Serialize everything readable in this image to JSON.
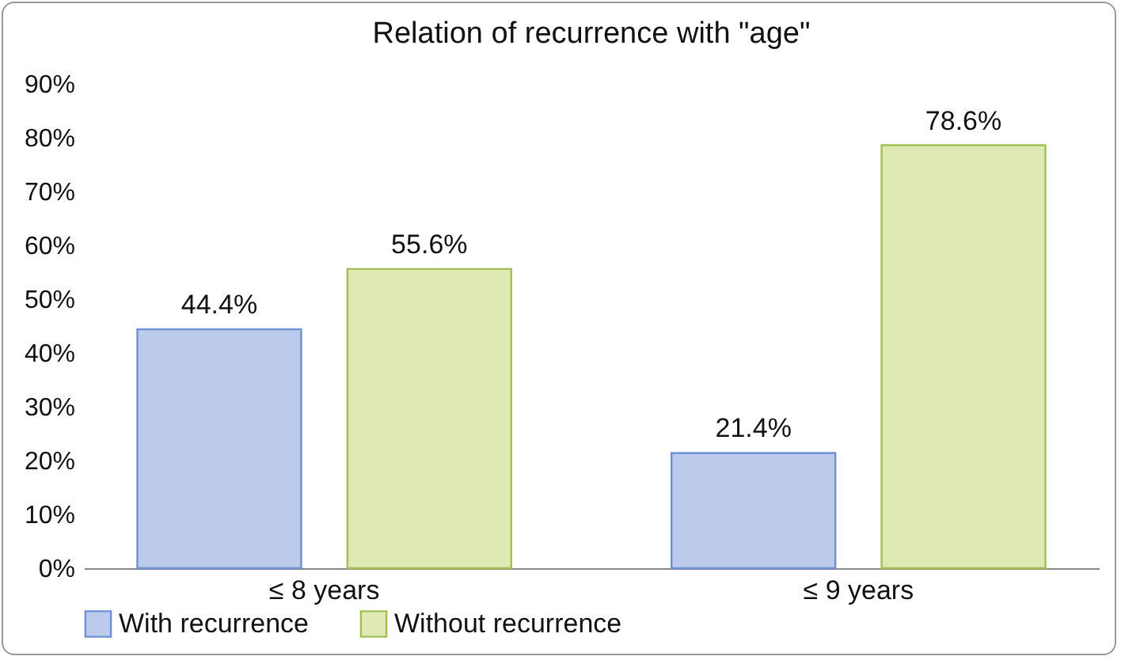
{
  "chart_data": {
    "type": "bar",
    "title": "Relation of recurrence with \"age\"",
    "categories": [
      "≤ 8 years",
      "≤ 9 years"
    ],
    "series": [
      {
        "name": "With recurrence",
        "color": "#bccbeb",
        "values": [
          44.4,
          21.4
        ],
        "value_labels": [
          "44.4%",
          "21.4%"
        ]
      },
      {
        "name": "Without recurrence",
        "color": "#dfe9b4",
        "values": [
          55.6,
          78.6
        ],
        "value_labels": [
          "55.6%",
          "78.6%"
        ]
      }
    ],
    "ylim": [
      0,
      90
    ],
    "yticks": [
      {
        "value": 0,
        "label": "0%"
      },
      {
        "value": 10,
        "label": "10%"
      },
      {
        "value": 20,
        "label": "20%"
      },
      {
        "value": 30,
        "label": "30%"
      },
      {
        "value": 40,
        "label": "40%"
      },
      {
        "value": 50,
        "label": "50%"
      },
      {
        "value": 60,
        "label": "60%"
      },
      {
        "value": 70,
        "label": "70%"
      },
      {
        "value": 80,
        "label": "80%"
      },
      {
        "value": 90,
        "label": "90%"
      }
    ],
    "legend": "bottom",
    "grid": false
  }
}
